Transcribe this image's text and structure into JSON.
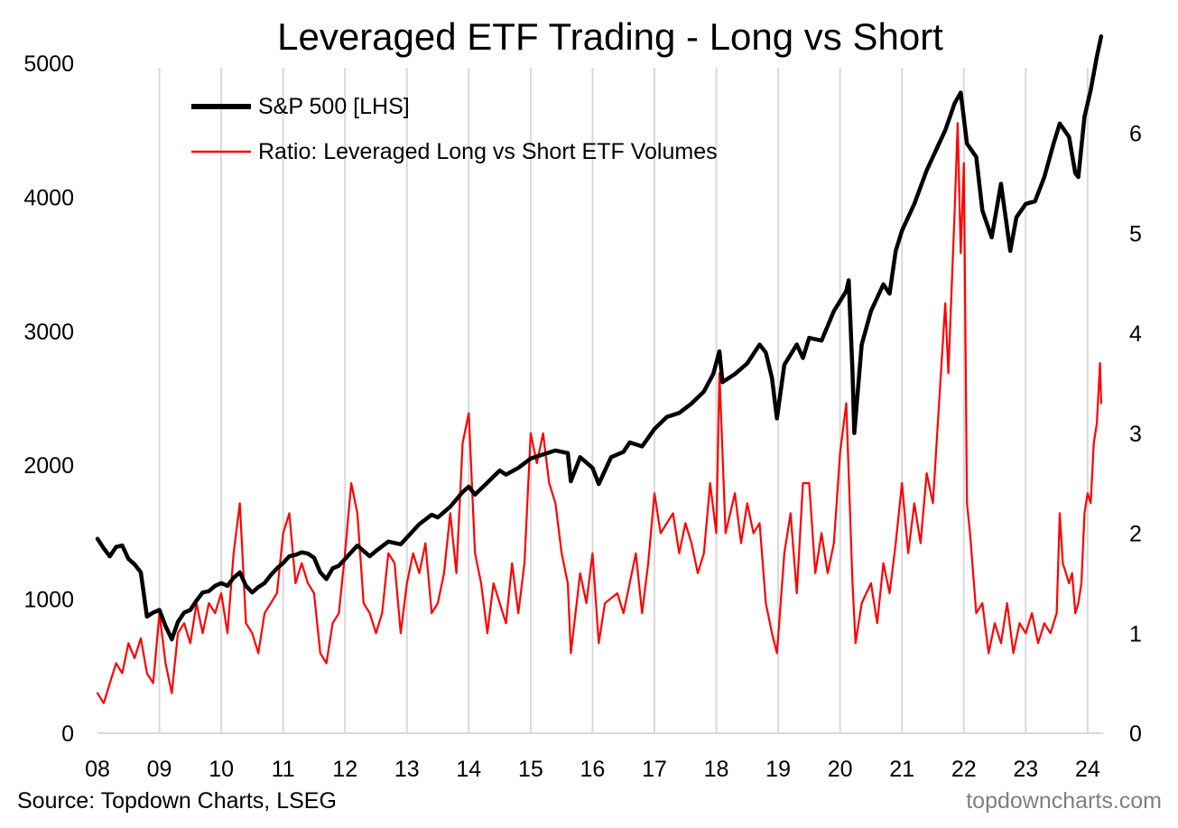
{
  "chart_data": {
    "type": "line",
    "title": "Leveraged ETF Trading - Long vs Short",
    "x_ticks": [
      "08",
      "09",
      "10",
      "11",
      "12",
      "13",
      "14",
      "15",
      "16",
      "17",
      "18",
      "19",
      "20",
      "21",
      "22",
      "23",
      "24"
    ],
    "xlim": [
      2008.0,
      2024.25
    ],
    "grid": "vertical",
    "legend_position": "top-left",
    "y_left": {
      "ticks": [
        "0",
        "1000",
        "2000",
        "3000",
        "4000",
        "5000"
      ],
      "ylim": [
        0,
        5000
      ]
    },
    "y_right": {
      "ticks": [
        "0",
        "1",
        "2",
        "3",
        "4",
        "5",
        "6"
      ],
      "ylim": [
        0,
        6.7
      ]
    },
    "series": [
      {
        "name": "S&P 500 [LHS]",
        "axis": "left",
        "color": "#000000",
        "points": [
          [
            2008.0,
            1450
          ],
          [
            2008.1,
            1380
          ],
          [
            2008.2,
            1320
          ],
          [
            2008.3,
            1390
          ],
          [
            2008.4,
            1400
          ],
          [
            2008.5,
            1300
          ],
          [
            2008.6,
            1260
          ],
          [
            2008.7,
            1200
          ],
          [
            2008.8,
            870
          ],
          [
            2008.9,
            900
          ],
          [
            2009.0,
            920
          ],
          [
            2009.1,
            800
          ],
          [
            2009.2,
            700
          ],
          [
            2009.3,
            830
          ],
          [
            2009.4,
            900
          ],
          [
            2009.5,
            920
          ],
          [
            2009.6,
            990
          ],
          [
            2009.7,
            1050
          ],
          [
            2009.8,
            1060
          ],
          [
            2009.9,
            1100
          ],
          [
            2010.0,
            1120
          ],
          [
            2010.1,
            1100
          ],
          [
            2010.2,
            1160
          ],
          [
            2010.3,
            1200
          ],
          [
            2010.4,
            1100
          ],
          [
            2010.5,
            1050
          ],
          [
            2010.6,
            1090
          ],
          [
            2010.7,
            1120
          ],
          [
            2010.8,
            1180
          ],
          [
            2010.9,
            1230
          ],
          [
            2011.0,
            1270
          ],
          [
            2011.1,
            1320
          ],
          [
            2011.2,
            1330
          ],
          [
            2011.3,
            1350
          ],
          [
            2011.4,
            1340
          ],
          [
            2011.5,
            1310
          ],
          [
            2011.6,
            1200
          ],
          [
            2011.7,
            1150
          ],
          [
            2011.8,
            1230
          ],
          [
            2011.9,
            1250
          ],
          [
            2012.0,
            1300
          ],
          [
            2012.2,
            1400
          ],
          [
            2012.4,
            1320
          ],
          [
            2012.5,
            1360
          ],
          [
            2012.7,
            1430
          ],
          [
            2012.9,
            1410
          ],
          [
            2013.0,
            1460
          ],
          [
            2013.2,
            1560
          ],
          [
            2013.4,
            1630
          ],
          [
            2013.5,
            1610
          ],
          [
            2013.7,
            1690
          ],
          [
            2013.9,
            1800
          ],
          [
            2014.0,
            1840
          ],
          [
            2014.1,
            1780
          ],
          [
            2014.3,
            1870
          ],
          [
            2014.5,
            1960
          ],
          [
            2014.6,
            1930
          ],
          [
            2014.8,
            1980
          ],
          [
            2015.0,
            2050
          ],
          [
            2015.2,
            2080
          ],
          [
            2015.4,
            2110
          ],
          [
            2015.6,
            2090
          ],
          [
            2015.65,
            1880
          ],
          [
            2015.8,
            2060
          ],
          [
            2016.0,
            1980
          ],
          [
            2016.1,
            1860
          ],
          [
            2016.3,
            2060
          ],
          [
            2016.5,
            2100
          ],
          [
            2016.6,
            2170
          ],
          [
            2016.8,
            2140
          ],
          [
            2017.0,
            2270
          ],
          [
            2017.2,
            2360
          ],
          [
            2017.4,
            2390
          ],
          [
            2017.6,
            2460
          ],
          [
            2017.8,
            2550
          ],
          [
            2017.95,
            2680
          ],
          [
            2018.05,
            2850
          ],
          [
            2018.1,
            2620
          ],
          [
            2018.3,
            2680
          ],
          [
            2018.5,
            2760
          ],
          [
            2018.7,
            2900
          ],
          [
            2018.8,
            2840
          ],
          [
            2018.9,
            2650
          ],
          [
            2018.98,
            2350
          ],
          [
            2019.1,
            2750
          ],
          [
            2019.3,
            2900
          ],
          [
            2019.4,
            2800
          ],
          [
            2019.5,
            2950
          ],
          [
            2019.7,
            2930
          ],
          [
            2019.9,
            3150
          ],
          [
            2020.1,
            3300
          ],
          [
            2020.14,
            3380
          ],
          [
            2020.2,
            2700
          ],
          [
            2020.23,
            2240
          ],
          [
            2020.35,
            2900
          ],
          [
            2020.5,
            3150
          ],
          [
            2020.7,
            3350
          ],
          [
            2020.8,
            3280
          ],
          [
            2020.9,
            3600
          ],
          [
            2021.0,
            3750
          ],
          [
            2021.2,
            3950
          ],
          [
            2021.4,
            4200
          ],
          [
            2021.6,
            4400
          ],
          [
            2021.7,
            4500
          ],
          [
            2021.85,
            4700
          ],
          [
            2021.95,
            4780
          ],
          [
            2022.05,
            4400
          ],
          [
            2022.2,
            4300
          ],
          [
            2022.3,
            3900
          ],
          [
            2022.45,
            3700
          ],
          [
            2022.6,
            4100
          ],
          [
            2022.75,
            3600
          ],
          [
            2022.85,
            3850
          ],
          [
            2023.0,
            3950
          ],
          [
            2023.15,
            3970
          ],
          [
            2023.3,
            4150
          ],
          [
            2023.45,
            4400
          ],
          [
            2023.55,
            4550
          ],
          [
            2023.7,
            4450
          ],
          [
            2023.8,
            4180
          ],
          [
            2023.85,
            4150
          ],
          [
            2023.95,
            4600
          ],
          [
            2024.05,
            4800
          ],
          [
            2024.15,
            5050
          ],
          [
            2024.22,
            5200
          ]
        ]
      },
      {
        "name": "Ratio: Leveraged Long vs Short ETF Volumes",
        "axis": "right",
        "color": "#ff0000",
        "points": [
          [
            2008.0,
            0.4
          ],
          [
            2008.1,
            0.3
          ],
          [
            2008.2,
            0.5
          ],
          [
            2008.3,
            0.7
          ],
          [
            2008.4,
            0.6
          ],
          [
            2008.5,
            0.9
          ],
          [
            2008.6,
            0.75
          ],
          [
            2008.7,
            0.95
          ],
          [
            2008.8,
            0.6
          ],
          [
            2008.9,
            0.5
          ],
          [
            2009.0,
            1.2
          ],
          [
            2009.1,
            0.7
          ],
          [
            2009.2,
            0.4
          ],
          [
            2009.3,
            1.0
          ],
          [
            2009.4,
            1.1
          ],
          [
            2009.5,
            0.9
          ],
          [
            2009.6,
            1.3
          ],
          [
            2009.7,
            1.0
          ],
          [
            2009.8,
            1.3
          ],
          [
            2009.9,
            1.2
          ],
          [
            2010.0,
            1.4
          ],
          [
            2010.1,
            1.0
          ],
          [
            2010.2,
            1.8
          ],
          [
            2010.3,
            2.3
          ],
          [
            2010.4,
            1.1
          ],
          [
            2010.5,
            1.0
          ],
          [
            2010.6,
            0.8
          ],
          [
            2010.7,
            1.2
          ],
          [
            2010.8,
            1.3
          ],
          [
            2010.9,
            1.4
          ],
          [
            2011.0,
            2.0
          ],
          [
            2011.1,
            2.2
          ],
          [
            2011.2,
            1.5
          ],
          [
            2011.3,
            1.7
          ],
          [
            2011.4,
            1.5
          ],
          [
            2011.5,
            1.4
          ],
          [
            2011.6,
            0.8
          ],
          [
            2011.7,
            0.7
          ],
          [
            2011.8,
            1.1
          ],
          [
            2011.9,
            1.2
          ],
          [
            2012.0,
            1.8
          ],
          [
            2012.1,
            2.5
          ],
          [
            2012.2,
            2.2
          ],
          [
            2012.3,
            1.3
          ],
          [
            2012.4,
            1.2
          ],
          [
            2012.5,
            1.0
          ],
          [
            2012.6,
            1.2
          ],
          [
            2012.7,
            1.8
          ],
          [
            2012.8,
            1.7
          ],
          [
            2012.9,
            1.0
          ],
          [
            2013.0,
            1.5
          ],
          [
            2013.1,
            1.8
          ],
          [
            2013.2,
            1.6
          ],
          [
            2013.3,
            1.9
          ],
          [
            2013.4,
            1.2
          ],
          [
            2013.5,
            1.3
          ],
          [
            2013.6,
            1.6
          ],
          [
            2013.7,
            2.2
          ],
          [
            2013.8,
            1.6
          ],
          [
            2013.9,
            2.9
          ],
          [
            2014.0,
            3.2
          ],
          [
            2014.1,
            1.8
          ],
          [
            2014.2,
            1.5
          ],
          [
            2014.3,
            1.0
          ],
          [
            2014.4,
            1.5
          ],
          [
            2014.5,
            1.3
          ],
          [
            2014.6,
            1.1
          ],
          [
            2014.7,
            1.7
          ],
          [
            2014.8,
            1.2
          ],
          [
            2014.9,
            1.7
          ],
          [
            2015.0,
            3.0
          ],
          [
            2015.1,
            2.7
          ],
          [
            2015.2,
            3.0
          ],
          [
            2015.3,
            2.5
          ],
          [
            2015.4,
            2.3
          ],
          [
            2015.5,
            1.8
          ],
          [
            2015.6,
            1.5
          ],
          [
            2015.65,
            0.8
          ],
          [
            2015.8,
            1.6
          ],
          [
            2015.9,
            1.3
          ],
          [
            2016.0,
            1.8
          ],
          [
            2016.1,
            0.9
          ],
          [
            2016.2,
            1.3
          ],
          [
            2016.4,
            1.4
          ],
          [
            2016.5,
            1.2
          ],
          [
            2016.6,
            1.5
          ],
          [
            2016.7,
            1.8
          ],
          [
            2016.8,
            1.2
          ],
          [
            2016.9,
            1.7
          ],
          [
            2017.0,
            2.4
          ],
          [
            2017.1,
            2.0
          ],
          [
            2017.2,
            2.1
          ],
          [
            2017.3,
            2.2
          ],
          [
            2017.4,
            1.8
          ],
          [
            2017.5,
            2.1
          ],
          [
            2017.6,
            1.9
          ],
          [
            2017.7,
            1.6
          ],
          [
            2017.8,
            1.8
          ],
          [
            2017.9,
            2.5
          ],
          [
            2018.0,
            2.0
          ],
          [
            2018.05,
            3.6
          ],
          [
            2018.15,
            2.0
          ],
          [
            2018.3,
            2.4
          ],
          [
            2018.4,
            1.9
          ],
          [
            2018.5,
            2.3
          ],
          [
            2018.6,
            2.0
          ],
          [
            2018.7,
            2.1
          ],
          [
            2018.8,
            1.3
          ],
          [
            2018.9,
            1.0
          ],
          [
            2018.98,
            0.8
          ],
          [
            2019.1,
            1.8
          ],
          [
            2019.2,
            2.2
          ],
          [
            2019.3,
            1.4
          ],
          [
            2019.4,
            2.5
          ],
          [
            2019.5,
            2.5
          ],
          [
            2019.6,
            1.6
          ],
          [
            2019.7,
            2.0
          ],
          [
            2019.8,
            1.6
          ],
          [
            2019.9,
            1.9
          ],
          [
            2020.0,
            2.8
          ],
          [
            2020.1,
            3.3
          ],
          [
            2020.2,
            1.5
          ],
          [
            2020.25,
            0.9
          ],
          [
            2020.35,
            1.3
          ],
          [
            2020.5,
            1.5
          ],
          [
            2020.6,
            1.1
          ],
          [
            2020.7,
            1.7
          ],
          [
            2020.8,
            1.4
          ],
          [
            2020.9,
            1.9
          ],
          [
            2021.0,
            2.5
          ],
          [
            2021.1,
            1.8
          ],
          [
            2021.2,
            2.3
          ],
          [
            2021.3,
            1.9
          ],
          [
            2021.4,
            2.6
          ],
          [
            2021.5,
            2.3
          ],
          [
            2021.6,
            3.3
          ],
          [
            2021.7,
            4.3
          ],
          [
            2021.75,
            3.6
          ],
          [
            2021.85,
            5.2
          ],
          [
            2021.9,
            6.1
          ],
          [
            2021.95,
            4.8
          ],
          [
            2022.0,
            5.7
          ],
          [
            2022.05,
            2.3
          ],
          [
            2022.1,
            2.0
          ],
          [
            2022.2,
            1.2
          ],
          [
            2022.3,
            1.3
          ],
          [
            2022.4,
            0.8
          ],
          [
            2022.5,
            1.1
          ],
          [
            2022.6,
            0.9
          ],
          [
            2022.7,
            1.3
          ],
          [
            2022.8,
            0.8
          ],
          [
            2022.9,
            1.1
          ],
          [
            2023.0,
            1.0
          ],
          [
            2023.1,
            1.2
          ],
          [
            2023.2,
            0.9
          ],
          [
            2023.3,
            1.1
          ],
          [
            2023.4,
            1.0
          ],
          [
            2023.5,
            1.2
          ],
          [
            2023.55,
            2.2
          ],
          [
            2023.6,
            1.7
          ],
          [
            2023.7,
            1.5
          ],
          [
            2023.75,
            1.6
          ],
          [
            2023.8,
            1.2
          ],
          [
            2023.85,
            1.3
          ],
          [
            2023.9,
            1.5
          ],
          [
            2023.95,
            2.2
          ],
          [
            2024.0,
            2.4
          ],
          [
            2024.05,
            2.3
          ],
          [
            2024.1,
            2.9
          ],
          [
            2024.15,
            3.1
          ],
          [
            2024.2,
            3.7
          ],
          [
            2024.22,
            3.3
          ]
        ]
      }
    ]
  },
  "footer": {
    "source": "Source: Topdown Charts, LSEG",
    "watermark": "topdowncharts.com"
  }
}
